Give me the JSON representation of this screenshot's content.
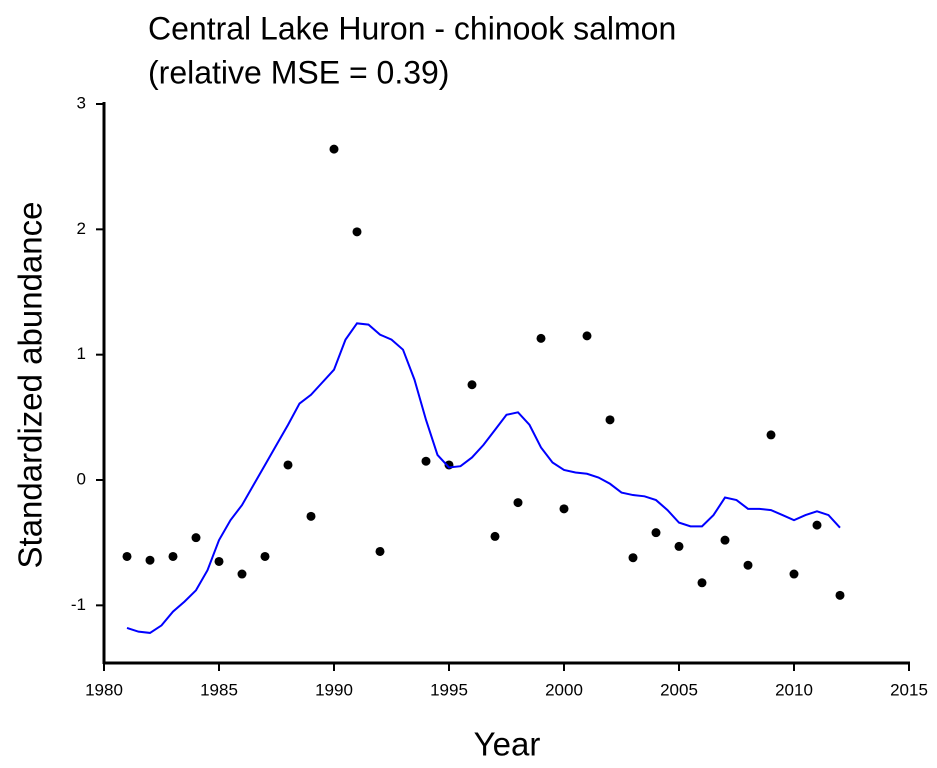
{
  "chart_data": {
    "type": "scatter",
    "title": "Central Lake Huron - chinook salmon",
    "subtitle": "(relative MSE = 0.39)",
    "x_label": "Year",
    "y_label": "Standardized abundance",
    "xlim": [
      1980,
      2015
    ],
    "xticks": [
      1980,
      1985,
      1990,
      1995,
      2000,
      2005,
      2010,
      2015
    ],
    "ylim": [
      -1.46,
      3
    ],
    "yticks": [
      -1,
      0,
      1,
      2,
      3
    ],
    "grid": false,
    "series": [
      {
        "style": "markers",
        "color": "#000000",
        "x": [
          1981,
          1982,
          1983,
          1984,
          1985,
          1986,
          1987,
          1988,
          1989,
          1990,
          1991,
          1992,
          1994,
          1995,
          1996,
          1997,
          1998,
          1999,
          2000,
          2001,
          2002,
          2003,
          2004,
          2005,
          2006,
          2007,
          2008,
          2009,
          2010,
          2011,
          2012
        ],
        "values": [
          -0.61,
          -0.64,
          -0.61,
          -0.46,
          -0.65,
          -0.75,
          -0.61,
          0.12,
          -0.29,
          2.64,
          1.98,
          -0.57,
          0.15,
          0.12,
          0.76,
          -0.45,
          -0.18,
          1.13,
          -0.23,
          1.15,
          0.48,
          -0.62,
          -0.42,
          -0.53,
          -0.82,
          -0.48,
          -0.68,
          0.36,
          -0.75,
          -0.36,
          -0.92
        ]
      },
      {
        "style": "line",
        "color": "#0000ff",
        "x": [
          1981,
          1981.5,
          1982,
          1982.5,
          1983,
          1983.5,
          1984,
          1984.5,
          1985,
          1985.5,
          1986,
          1986.5,
          1987,
          1987.5,
          1988,
          1988.5,
          1989,
          1989.5,
          1990,
          1990.5,
          1991,
          1991.5,
          1992,
          1992.5,
          1993,
          1993.5,
          1994,
          1994.5,
          1995,
          1995.5,
          1996,
          1996.5,
          1997,
          1997.5,
          1998,
          1998.5,
          1999,
          1999.5,
          2000,
          2000.5,
          2001,
          2001.5,
          2002,
          2002.5,
          2003,
          2003.5,
          2004,
          2004.5,
          2005,
          2005.5,
          2006,
          2006.5,
          2007,
          2007.5,
          2008,
          2008.5,
          2009,
          2009.5,
          2010,
          2010.5,
          2011,
          2011.5,
          2012
        ],
        "values": [
          -1.18,
          -1.21,
          -1.22,
          -1.16,
          -1.05,
          -0.97,
          -0.88,
          -0.72,
          -0.48,
          -0.32,
          -0.2,
          -0.04,
          0.12,
          0.28,
          0.44,
          0.61,
          0.68,
          0.78,
          0.88,
          1.12,
          1.25,
          1.24,
          1.16,
          1.12,
          1.04,
          0.8,
          0.48,
          0.2,
          0.1,
          0.11,
          0.18,
          0.28,
          0.4,
          0.52,
          0.54,
          0.44,
          0.26,
          0.14,
          0.08,
          0.06,
          0.05,
          0.02,
          -0.03,
          -0.1,
          -0.12,
          -0.13,
          -0.16,
          -0.24,
          -0.34,
          -0.37,
          -0.37,
          -0.28,
          -0.14,
          -0.16,
          -0.23,
          -0.23,
          -0.24,
          -0.28,
          -0.32,
          -0.28,
          -0.25,
          -0.28,
          -0.38
        ]
      }
    ]
  }
}
